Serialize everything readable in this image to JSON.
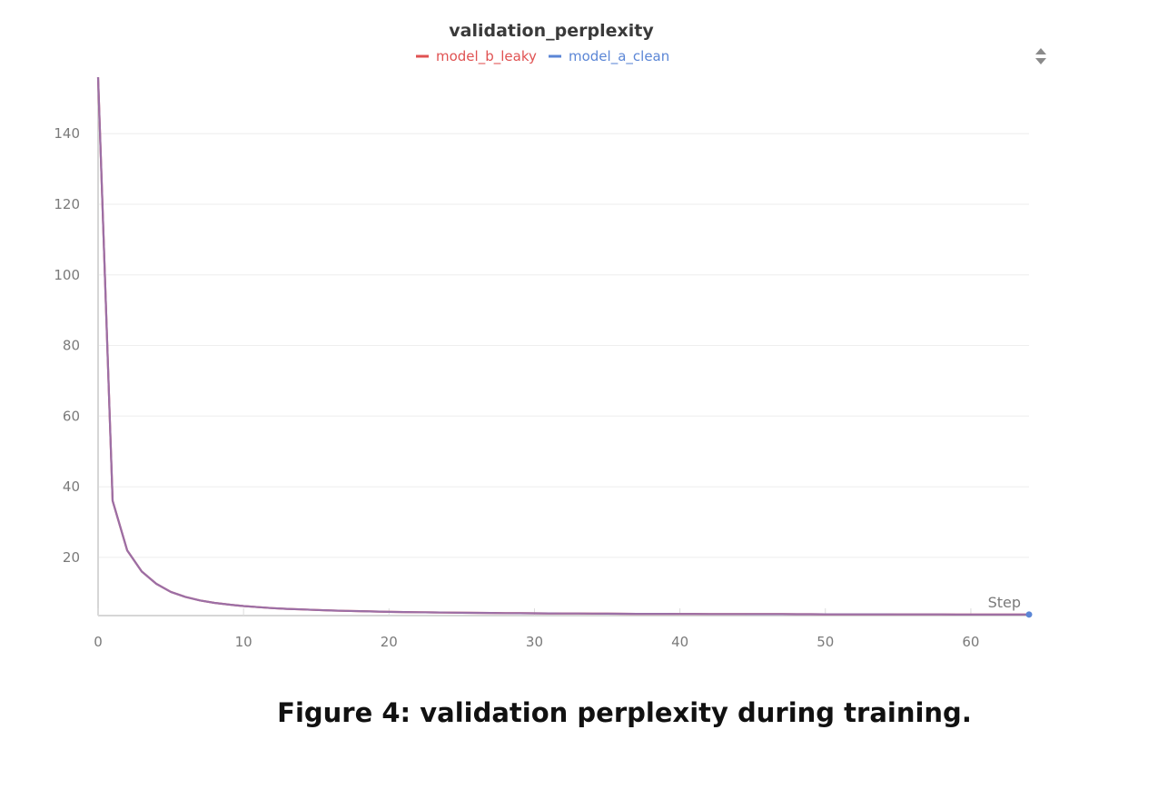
{
  "chart_data": {
    "type": "line",
    "title": "validation_perplexity",
    "xlabel": "Step",
    "ylabel": "",
    "xlim": [
      0,
      64
    ],
    "ylim": [
      3.5,
      156
    ],
    "x_ticks": [
      0,
      10,
      20,
      30,
      40,
      50,
      60
    ],
    "y_ticks": [
      20,
      40,
      60,
      80,
      100,
      120,
      140
    ],
    "grid": true,
    "legend_position": "top-center",
    "series": [
      {
        "name": "model_b_leaky",
        "color": "#e05252",
        "x": [
          0,
          1,
          2,
          3,
          4,
          5,
          6,
          7,
          8,
          9,
          10,
          11,
          12,
          13,
          14,
          15,
          16,
          17,
          18,
          19,
          20,
          21,
          22,
          23,
          24,
          25,
          26,
          27,
          28,
          29,
          30,
          31,
          32,
          33,
          34,
          35,
          36,
          37,
          38,
          39,
          40,
          41,
          42,
          43,
          44,
          45,
          46,
          47,
          48,
          49,
          50,
          51,
          52,
          53,
          54,
          55,
          56,
          57,
          58,
          59,
          60,
          61,
          62,
          63,
          64
        ],
        "y": [
          156,
          36,
          22,
          16,
          12.5,
          10.2,
          8.8,
          7.8,
          7.1,
          6.6,
          6.2,
          5.9,
          5.6,
          5.4,
          5.25,
          5.1,
          4.95,
          4.85,
          4.75,
          4.65,
          4.55,
          4.5,
          4.45,
          4.4,
          4.35,
          4.3,
          4.27,
          4.24,
          4.2,
          4.17,
          4.14,
          4.12,
          4.1,
          4.08,
          4.06,
          4.04,
          4.02,
          4.0,
          3.99,
          3.98,
          3.97,
          3.96,
          3.95,
          3.94,
          3.93,
          3.92,
          3.91,
          3.9,
          3.89,
          3.88,
          3.87,
          3.86,
          3.86,
          3.85,
          3.85,
          3.84,
          3.84,
          3.83,
          3.83,
          3.82,
          3.82,
          3.81,
          3.81,
          3.8,
          3.8
        ]
      },
      {
        "name": "model_a_clean",
        "color": "#5b86d6",
        "x": [
          0,
          1,
          2,
          3,
          4,
          5,
          6,
          7,
          8,
          9,
          10,
          11,
          12,
          13,
          14,
          15,
          16,
          17,
          18,
          19,
          20,
          21,
          22,
          23,
          24,
          25,
          26,
          27,
          28,
          29,
          30,
          31,
          32,
          33,
          34,
          35,
          36,
          37,
          38,
          39,
          40,
          41,
          42,
          43,
          44,
          45,
          46,
          47,
          48,
          49,
          50,
          51,
          52,
          53,
          54,
          55,
          56,
          57,
          58,
          59,
          60,
          61,
          62,
          63,
          64
        ],
        "y": [
          156,
          36,
          22,
          16,
          12.5,
          10.2,
          8.8,
          7.8,
          7.1,
          6.6,
          6.2,
          5.9,
          5.6,
          5.4,
          5.25,
          5.1,
          4.95,
          4.85,
          4.75,
          4.65,
          4.55,
          4.5,
          4.45,
          4.4,
          4.35,
          4.3,
          4.27,
          4.24,
          4.2,
          4.17,
          4.14,
          4.12,
          4.1,
          4.08,
          4.06,
          4.04,
          4.02,
          4.0,
          3.99,
          3.98,
          3.97,
          3.96,
          3.95,
          3.94,
          3.93,
          3.92,
          3.91,
          3.9,
          3.89,
          3.88,
          3.87,
          3.86,
          3.86,
          3.85,
          3.85,
          3.84,
          3.84,
          3.83,
          3.83,
          3.82,
          3.82,
          3.81,
          3.81,
          3.8,
          3.8
        ]
      }
    ],
    "overlap_color": "#9b6fa6"
  },
  "caption": "Figure 4: validation perplexity during training.",
  "icons": {
    "panel_menu": "sort-toggle-icon"
  }
}
